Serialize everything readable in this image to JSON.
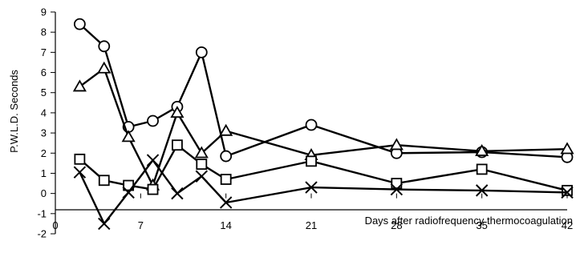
{
  "chart_data": {
    "type": "line",
    "xlabel": "Days after radiofrequency thermocoagulation",
    "ylabel": "P.W.L.D.  Seconds",
    "xlim": [
      0,
      42
    ],
    "ylim": [
      -2,
      9
    ],
    "x_ticks": [
      0,
      7,
      14,
      21,
      28,
      35,
      42
    ],
    "x_tick_labels": [
      "0",
      "7",
      "14",
      "21",
      "28",
      "35",
      "42"
    ],
    "y_ticks": [
      -2,
      -1,
      0,
      1,
      2,
      3,
      4,
      5,
      6,
      7,
      8,
      9
    ],
    "y_tick_labels": [
      "-2",
      "-1",
      "0",
      "1",
      "2",
      "3",
      "4",
      "5",
      "6",
      "7",
      "8",
      "9"
    ],
    "grid": false,
    "legend": "none",
    "line_color": "#000000",
    "series": [
      {
        "marker": "circle",
        "x": [
          2,
          4,
          6,
          8,
          10,
          12,
          14,
          21,
          28,
          35,
          42
        ],
        "y": [
          8.4,
          7.3,
          3.3,
          3.6,
          4.3,
          7.0,
          1.85,
          3.4,
          2.0,
          2.05,
          1.8
        ]
      },
      {
        "marker": "triangle",
        "x": [
          2,
          4,
          6,
          8,
          10,
          12,
          14,
          21,
          28,
          35,
          42
        ],
        "y": [
          5.3,
          6.2,
          2.8,
          0.4,
          4.0,
          2.0,
          3.1,
          1.9,
          2.4,
          2.1,
          2.2
        ]
      },
      {
        "marker": "square",
        "x": [
          2,
          4,
          6,
          8,
          10,
          12,
          14,
          21,
          28,
          35,
          42
        ],
        "y": [
          1.7,
          0.65,
          0.4,
          0.2,
          2.4,
          1.45,
          0.7,
          1.6,
          0.5,
          1.2,
          0.15
        ]
      },
      {
        "marker": "x",
        "x": [
          2,
          4,
          6,
          8,
          10,
          12,
          14,
          21,
          28,
          35,
          42
        ],
        "y": [
          1.05,
          -1.5,
          0.05,
          1.65,
          0.0,
          0.85,
          -0.45,
          0.3,
          0.2,
          0.15,
          0.05
        ]
      }
    ]
  }
}
